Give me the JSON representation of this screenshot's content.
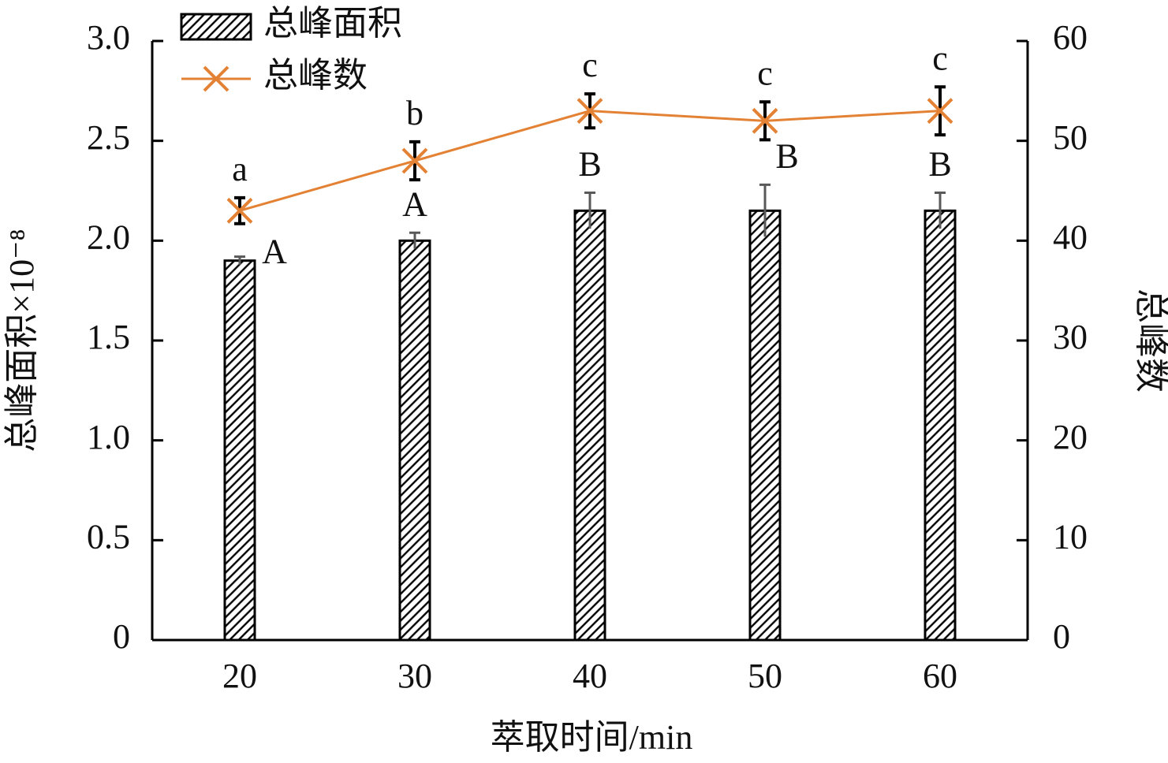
{
  "chart_data": {
    "type": "bar-line",
    "x_label": "萃取时间/min",
    "y_label": "总峰面积×10⁻⁸",
    "y2_label": "总峰数",
    "categories": [
      "20",
      "30",
      "40",
      "50",
      "60"
    ],
    "series": [
      {
        "name": "总峰面积",
        "type": "bar",
        "color": "#000000",
        "values": [
          1.9,
          2.0,
          2.15,
          2.15,
          2.15
        ],
        "errors": [
          0.02,
          0.04,
          0.09,
          0.13,
          0.09
        ],
        "labels": [
          "A",
          "A",
          "B",
          "B",
          "B"
        ]
      },
      {
        "name": "总峰数",
        "type": "line",
        "axis": "y2",
        "color": "#e38234",
        "values": [
          43,
          48,
          53,
          52,
          53
        ],
        "errors": [
          1.3,
          1.9,
          1.7,
          1.9,
          2.4
        ],
        "labels": [
          "a",
          "b",
          "c",
          "c",
          "c"
        ]
      }
    ],
    "ylim": [
      0,
      3.0
    ],
    "yticks": [
      0,
      0.5,
      {
        "value": 1,
        "label": "1.0"
      },
      1.5,
      {
        "value": 2,
        "label": "2.0"
      },
      2.5,
      {
        "value": 3,
        "label": "3.0"
      }
    ],
    "y2lim": [
      0,
      60
    ],
    "y2ticks": [
      0,
      10,
      20,
      30,
      40,
      50,
      60
    ],
    "legend": "top-left"
  }
}
